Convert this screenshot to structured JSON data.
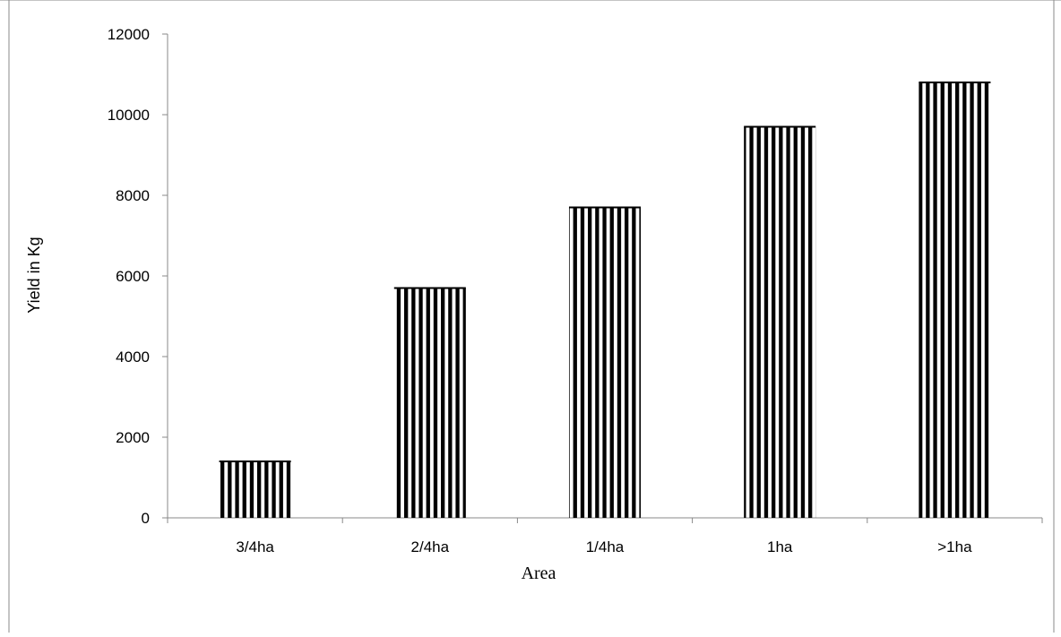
{
  "chart_data": {
    "type": "bar",
    "categories": [
      "3/4ha",
      "2/4ha",
      "1/4ha",
      "1ha",
      ">1ha"
    ],
    "values": [
      1400,
      5700,
      7700,
      9700,
      10800
    ],
    "xlabel": "Area",
    "ylabel": "Yield in Kg",
    "ylim": [
      0,
      12000
    ],
    "yticks": [
      0,
      2000,
      4000,
      6000,
      8000,
      10000,
      12000
    ],
    "grid": false,
    "legend": "none",
    "bar_pattern": "vertical-stripes",
    "bar_color": "#000000"
  }
}
